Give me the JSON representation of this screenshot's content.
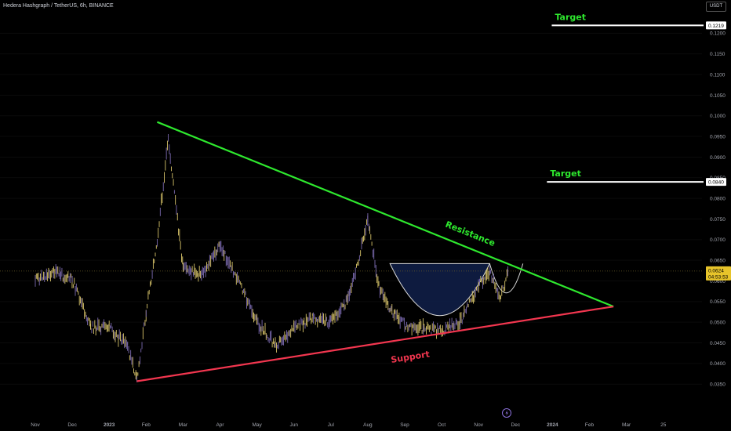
{
  "header": {
    "symbol_line": "Hedera Hashgraph / TetherUS, 6h, BINANCE",
    "currency_button": "USDT"
  },
  "colors": {
    "resistance": "#2ee82e",
    "support": "#f2364f",
    "candles": "#d8c46a",
    "cup": "#10204a",
    "target": "#ffffff",
    "price_tag": "#e7c42a"
  },
  "chart_data": {
    "type": "line",
    "title": "",
    "xlabel": "",
    "ylabel": "",
    "ylim": [
      0.032,
      0.1235
    ],
    "x_ticks": [
      "Nov",
      "Dec",
      "2023",
      "Feb",
      "Mar",
      "Apr",
      "May",
      "Jun",
      "Jul",
      "Aug",
      "Sep",
      "Oct",
      "Nov",
      "Dec",
      "2024",
      "Feb",
      "Mar",
      "25"
    ],
    "y_ticks": [
      "0.0350",
      "0.0400",
      "0.0450",
      "0.0500",
      "0.0550",
      "0.0600",
      "0.0650",
      "0.0700",
      "0.0750",
      "0.0800",
      "0.0850",
      "0.0900",
      "0.0950",
      "0.1000",
      "0.1050",
      "0.1100",
      "0.1150",
      "0.1200"
    ],
    "price_series": {
      "x": [
        0,
        0.5,
        1,
        1.5,
        2,
        2.5,
        2.75,
        3,
        3.3,
        3.6,
        4,
        4.5,
        5,
        5.5,
        6,
        6.5,
        7,
        7.5,
        8,
        8.5,
        9,
        9.3,
        9.6,
        10,
        10.5,
        11,
        11.5,
        12,
        12.3,
        12.6,
        12.8
      ],
      "y": [
        0.0603,
        0.0622,
        0.0603,
        0.0487,
        0.0489,
        0.044,
        0.0359,
        0.0525,
        0.07,
        0.0941,
        0.063,
        0.0615,
        0.0685,
        0.06,
        0.05,
        0.0445,
        0.0485,
        0.051,
        0.05,
        0.056,
        0.0748,
        0.0585,
        0.053,
        0.0495,
        0.0485,
        0.0478,
        0.05,
        0.059,
        0.062,
        0.056,
        0.0624
      ]
    },
    "resistance_line": {
      "label": "Resistance",
      "x": [
        3.3,
        15.65
      ],
      "y": [
        0.0985,
        0.0538
      ]
    },
    "support_line": {
      "label": "Support",
      "x": [
        2.75,
        15.65
      ],
      "y": [
        0.0357,
        0.0538
      ]
    },
    "targets": [
      {
        "label": "Target",
        "value": "0.1219",
        "y": 0.1219,
        "x_start": 13.98,
        "x_end": 16.7
      },
      {
        "label": "Target",
        "value": "0.0840",
        "y": 0.084,
        "x_start": 13.85,
        "x_end": 16.7
      }
    ],
    "current_price": {
      "value": "0.0624",
      "countdown": "04:53:53"
    },
    "pattern_level": 0.0642
  }
}
